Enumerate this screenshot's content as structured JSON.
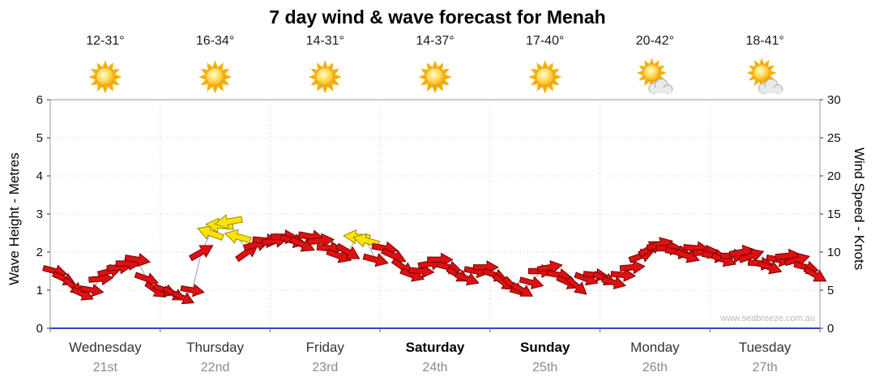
{
  "title": "7 day wind & wave forecast for Menah",
  "watermark": "www.seabreeze.com.au",
  "chart_data": {
    "type": "wind-arrow-timeseries",
    "ylabel_left": "Wave Height - Metres",
    "ylabel_right": "Wind Speed - Knots",
    "y_left": {
      "min": 0,
      "max": 6,
      "ticks": [
        0,
        1,
        2,
        3,
        4,
        5,
        6
      ]
    },
    "y_right": {
      "min": 0,
      "max": 30,
      "ticks": [
        0,
        5,
        10,
        15,
        20,
        25,
        30
      ]
    },
    "arrow_colors": {
      "red": "#DD1111",
      "yellow": "#FFE400"
    },
    "arrow_outline": {
      "red": "#7A0000",
      "yellow": "#948A00"
    },
    "point_fields": [
      "hour",
      "knots",
      "dir_deg",
      "color"
    ],
    "days": [
      {
        "name": "Wednesday",
        "date": "21st",
        "temp": "12-31°",
        "icon": "sunny",
        "bold": false,
        "points": [
          [
            0,
            7.5,
            15
          ],
          [
            2,
            6.5,
            25
          ],
          [
            4,
            5.5,
            40
          ],
          [
            6,
            4.5,
            25
          ],
          [
            8,
            5,
            10
          ],
          [
            10,
            6.5,
            -5
          ],
          [
            12,
            7.5,
            -15
          ],
          [
            14,
            8,
            -5
          ],
          [
            16,
            8.5,
            0
          ],
          [
            18,
            9,
            10
          ],
          [
            20,
            6.5,
            20
          ],
          [
            22,
            5,
            35
          ]
        ]
      },
      {
        "name": "Thursday",
        "date": "22nd",
        "temp": "16-34°",
        "icon": "sunny",
        "bold": false,
        "points": [
          [
            0,
            5,
            20
          ],
          [
            2,
            4.5,
            30
          ],
          [
            4,
            4,
            25
          ],
          [
            6,
            5,
            10
          ],
          [
            8,
            10,
            -30
          ],
          [
            10,
            12.5,
            200,
            "yellow"
          ],
          [
            12,
            13.5,
            185,
            "yellow"
          ],
          [
            14,
            14,
            170,
            "yellow"
          ],
          [
            16,
            12,
            195,
            "yellow"
          ],
          [
            18,
            10,
            -35
          ],
          [
            20,
            11,
            -15
          ],
          [
            22,
            11.5,
            5
          ]
        ]
      },
      {
        "name": "Friday",
        "date": "23rd",
        "temp": "14-31°",
        "icon": "sunny",
        "bold": false,
        "points": [
          [
            0,
            11.5,
            -10
          ],
          [
            2,
            12,
            0
          ],
          [
            4,
            11.5,
            15
          ],
          [
            6,
            11,
            25
          ],
          [
            8,
            12,
            10
          ],
          [
            10,
            11.5,
            -5
          ],
          [
            12,
            10.5,
            5
          ],
          [
            14,
            9.5,
            20
          ],
          [
            16,
            10,
            30
          ],
          [
            18,
            12,
            185,
            "yellow"
          ],
          [
            20,
            11.5,
            195,
            "yellow"
          ],
          [
            22,
            9,
            15
          ]
        ]
      },
      {
        "name": "Saturday",
        "date": "24th",
        "temp": "14-37°",
        "icon": "sunny",
        "bold": true,
        "points": [
          [
            0,
            10.5,
            10
          ],
          [
            2,
            9.5,
            25
          ],
          [
            4,
            8,
            35
          ],
          [
            6,
            7,
            20
          ],
          [
            8,
            7.5,
            5
          ],
          [
            10,
            8.5,
            -10
          ],
          [
            12,
            9,
            0
          ],
          [
            14,
            8,
            15
          ],
          [
            16,
            7,
            30
          ],
          [
            18,
            6.5,
            20
          ],
          [
            20,
            7.5,
            10
          ],
          [
            22,
            8,
            0
          ]
        ]
      },
      {
        "name": "Sunday",
        "date": "25th",
        "temp": "17-40°",
        "icon": "sunny",
        "bold": true,
        "points": [
          [
            0,
            7,
            20
          ],
          [
            2,
            6,
            35
          ],
          [
            4,
            5.5,
            45
          ],
          [
            6,
            5,
            30
          ],
          [
            8,
            6,
            15
          ],
          [
            10,
            7.5,
            0
          ],
          [
            12,
            8,
            -10
          ],
          [
            14,
            7,
            10
          ],
          [
            16,
            6,
            25
          ],
          [
            18,
            5.5,
            40
          ],
          [
            20,
            6.5,
            20
          ],
          [
            22,
            7,
            5
          ]
        ]
      },
      {
        "name": "Monday",
        "date": "26th",
        "temp": "20-42°",
        "icon": "partly-cloudy",
        "bold": false,
        "points": [
          [
            0,
            6.5,
            25
          ],
          [
            2,
            6,
            15
          ],
          [
            4,
            7,
            5
          ],
          [
            6,
            8,
            -5
          ],
          [
            8,
            9.5,
            -20
          ],
          [
            10,
            10.5,
            -30
          ],
          [
            12,
            11,
            -15
          ],
          [
            14,
            10.5,
            0
          ],
          [
            16,
            10,
            10
          ],
          [
            18,
            9.5,
            20
          ],
          [
            20,
            10.5,
            5
          ],
          [
            22,
            10,
            -5
          ]
        ]
      },
      {
        "name": "Tuesday",
        "date": "27th",
        "temp": "18-41°",
        "icon": "partly-cloudy",
        "bold": false,
        "points": [
          [
            0,
            9.5,
            10
          ],
          [
            2,
            9,
            20
          ],
          [
            4,
            9.5,
            0
          ],
          [
            6,
            10,
            -10
          ],
          [
            8,
            9.5,
            -20
          ],
          [
            10,
            8.5,
            5
          ],
          [
            12,
            8,
            20
          ],
          [
            14,
            9,
            10
          ],
          [
            16,
            9.5,
            -5
          ],
          [
            18,
            9,
            -15
          ],
          [
            20,
            8,
            15
          ],
          [
            22,
            7,
            30
          ]
        ]
      }
    ]
  }
}
